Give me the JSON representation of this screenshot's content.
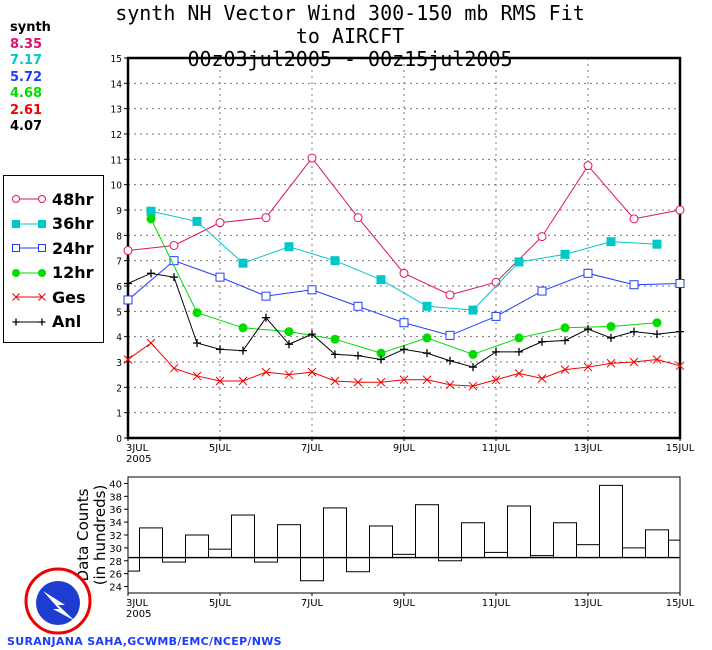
{
  "chart_data": [
    {
      "type": "line",
      "title": [
        "synth NH Vector Wind 300-150 mb RMS Fit to AIRCFT",
        "00z03jul2005 - 00z15jul2005"
      ],
      "xlabel": "",
      "ylabel": "",
      "x_tick_labels": [
        "3JUL\n2005",
        "5JUL",
        "7JUL",
        "9JUL",
        "11JUL",
        "13JUL",
        "15JUL"
      ],
      "x_tick_days": [
        3,
        5,
        7,
        9,
        11,
        13,
        15
      ],
      "xlim_days": [
        3,
        15
      ],
      "ylim": [
        0,
        15
      ],
      "y_ticks": [
        0,
        1,
        2,
        3,
        4,
        5,
        6,
        7,
        8,
        9,
        10,
        11,
        12,
        13,
        14,
        15
      ],
      "grid": true,
      "legend_placement": "left, outside",
      "stats_label": "synth",
      "series": [
        {
          "name": "48hr",
          "color": "#e0106a",
          "marker": "open-circle",
          "mean": "8.35",
          "x": [
            3,
            4,
            5,
            6,
            7,
            8,
            9,
            10,
            11,
            12,
            13,
            14,
            15
          ],
          "y": [
            7.4,
            7.6,
            8.5,
            8.7,
            11.05,
            8.7,
            6.5,
            5.65,
            6.15,
            7.95,
            10.75,
            8.65,
            9.0
          ]
        },
        {
          "name": "36hr",
          "color": "#00c8c8",
          "marker": "filled-square",
          "mean": "7.17",
          "x": [
            3.5,
            4.5,
            5.5,
            6.5,
            7.5,
            8.5,
            9.5,
            10.5,
            11.5,
            12.5,
            13.5,
            14.5
          ],
          "y": [
            8.95,
            8.55,
            6.9,
            7.55,
            7.0,
            6.25,
            5.2,
            5.05,
            6.95,
            7.25,
            7.75,
            7.65
          ]
        },
        {
          "name": "24hr",
          "color": "#1e3cff",
          "marker": "open-square",
          "mean": "5.72",
          "x": [
            3,
            4,
            5,
            6,
            7,
            8,
            9,
            10,
            11,
            12,
            13,
            14,
            15
          ],
          "y": [
            5.45,
            7.0,
            6.35,
            5.6,
            5.85,
            5.2,
            4.55,
            4.05,
            4.8,
            5.8,
            6.5,
            6.05,
            6.1
          ]
        },
        {
          "name": "12hr",
          "color": "#00dc00",
          "marker": "filled-circle",
          "mean": "4.68",
          "x": [
            3.5,
            4.5,
            5.5,
            6.5,
            7.5,
            8.5,
            9.5,
            10.5,
            11.5,
            12.5,
            13.5,
            14.5
          ],
          "y": [
            8.65,
            4.95,
            4.35,
            4.2,
            3.9,
            3.35,
            3.95,
            3.3,
            3.95,
            4.35,
            4.4,
            4.55
          ]
        },
        {
          "name": "Ges",
          "color": "#f00000",
          "marker": "x",
          "mean": "2.61",
          "x": [
            3,
            3.5,
            4,
            4.5,
            5,
            5.5,
            6,
            6.5,
            7,
            7.5,
            8,
            8.5,
            9,
            9.5,
            10,
            10.5,
            11,
            11.5,
            12,
            12.5,
            13,
            13.5,
            14,
            14.5,
            15
          ],
          "y": [
            3.1,
            3.75,
            2.75,
            2.45,
            2.25,
            2.25,
            2.6,
            2.5,
            2.6,
            2.25,
            2.2,
            2.2,
            2.3,
            2.3,
            2.1,
            2.05,
            2.3,
            2.55,
            2.35,
            2.7,
            2.8,
            2.95,
            3.0,
            3.1,
            2.85
          ]
        },
        {
          "name": "Anl",
          "color": "#000000",
          "marker": "plus",
          "mean": "4.07",
          "x": [
            3,
            3.5,
            4,
            4.5,
            5,
            5.5,
            6,
            6.5,
            7,
            7.5,
            8,
            8.5,
            9,
            9.5,
            10,
            10.5,
            11,
            11.5,
            12,
            12.5,
            13,
            13.5,
            14,
            14.5,
            15
          ],
          "y": [
            6.1,
            6.5,
            6.35,
            3.75,
            3.5,
            3.45,
            4.75,
            3.7,
            4.1,
            3.3,
            3.25,
            3.1,
            3.5,
            3.35,
            3.05,
            2.8,
            3.4,
            3.4,
            3.8,
            3.85,
            4.3,
            3.95,
            4.2,
            4.1,
            4.2
          ]
        }
      ]
    },
    {
      "type": "bar",
      "ylabel": [
        "Data Counts",
        "(in hundreds)"
      ],
      "ylim": [
        23,
        41
      ],
      "y_ticks": [
        24,
        26,
        28,
        30,
        32,
        34,
        36,
        38,
        40
      ],
      "x_tick_labels": [
        "3JUL\n2005",
        "5JUL",
        "7JUL",
        "9JUL",
        "11JUL",
        "13JUL",
        "15JUL"
      ],
      "reference_line": 28.5,
      "x": [
        3,
        3.5,
        4,
        4.5,
        5,
        5.5,
        6,
        6.5,
        7,
        7.5,
        8,
        8.5,
        9,
        9.5,
        10,
        10.5,
        11,
        11.5,
        12,
        12.5,
        13,
        13.5,
        14,
        14.5,
        15
      ],
      "values": [
        26.4,
        33.1,
        27.8,
        32.0,
        29.8,
        35.1,
        27.8,
        33.6,
        24.9,
        36.2,
        26.3,
        33.4,
        29.0,
        36.7,
        28.0,
        33.9,
        29.3,
        36.5,
        28.8,
        33.9,
        30.5,
        39.7,
        30.0,
        32.8,
        31.2
      ]
    }
  ],
  "logo_text": "NATIONAL WEATHER SERVICE",
  "credit": "SURANJANA SAHA,GCWMB/EMC/NCEP/NWS"
}
